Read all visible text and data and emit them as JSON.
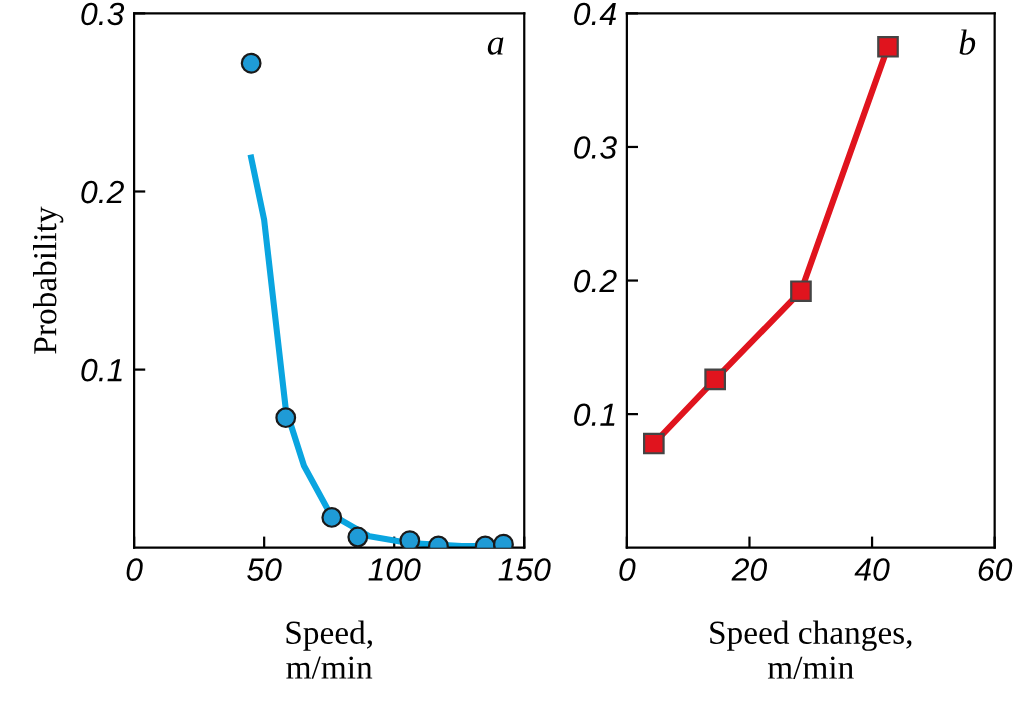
{
  "chart_data": [
    {
      "type": "scatter",
      "xlabel": "Speed,\nm/min",
      "ylabel": "Probability",
      "annotations": [
        "a"
      ],
      "xlim": [
        0,
        150
      ],
      "ylim": [
        0,
        0.3
      ],
      "xticks": [
        0,
        50,
        100,
        150
      ],
      "yticks": [
        0.1,
        0.2,
        0.3
      ],
      "grid": false,
      "legend": false,
      "series": [
        {
          "type": "scatter",
          "color": "#1f9bd6",
          "marker": "circle",
          "x": [
            45,
            58.3,
            76,
            86,
            106,
            117,
            135,
            142
          ],
          "values": [
            0.272,
            0.073,
            0.017,
            0.006,
            0.004,
            0.001,
            0.001,
            0.002
          ]
        },
        {
          "type": "line",
          "color": "#0aa5e0",
          "marker": "none",
          "line_style": "solid",
          "x": [
            45,
            50,
            55,
            58.3,
            65.3,
            75.4,
            90.5,
            105.6,
            126,
            141
          ],
          "values": [
            0.219,
            0.184,
            0.12,
            0.078,
            0.046,
            0.019,
            0.0064,
            0.0026,
            0.001,
            0.001
          ]
        }
      ]
    },
    {
      "type": "line",
      "xlabel": "Speed changes,\nm/min",
      "annotations": [
        "b"
      ],
      "xlim": [
        0,
        60
      ],
      "ylim": [
        0,
        0.4
      ],
      "xticks": [
        0,
        20,
        40,
        60
      ],
      "yticks": [
        0.1,
        0.2,
        0.3,
        0.4
      ],
      "grid": false,
      "legend": false,
      "marker": "square",
      "line_style": "solid",
      "series": [
        {
          "color": "#e0141e",
          "x": [
            4.4,
            14.4,
            28.4,
            42.6
          ],
          "values": [
            0.078,
            0.126,
            0.192,
            0.375
          ]
        }
      ]
    }
  ]
}
